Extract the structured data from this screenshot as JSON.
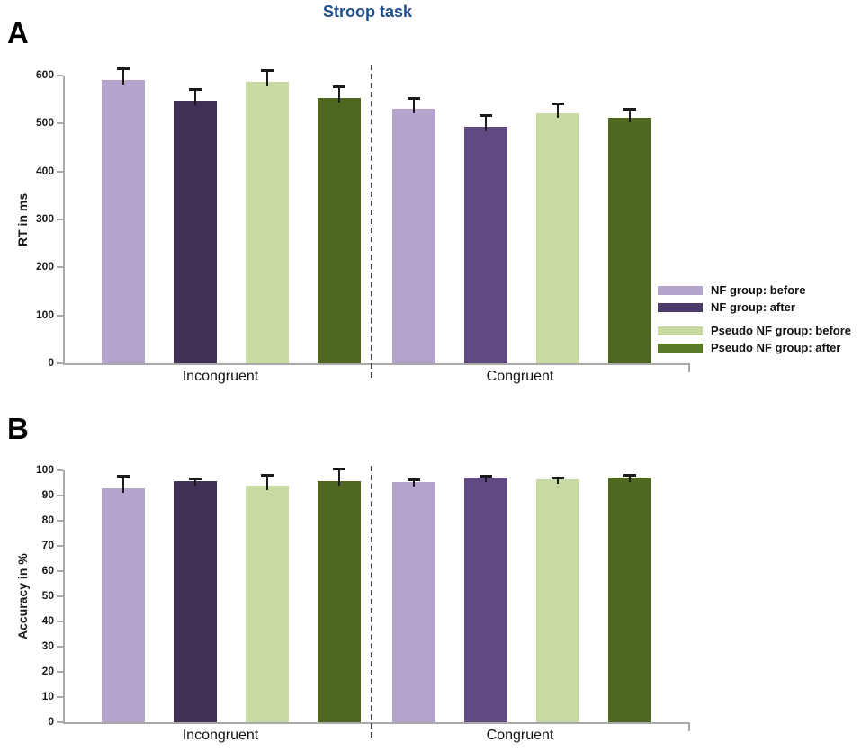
{
  "title": "Stroop task",
  "title_color": "#1f4e8c",
  "panels": {
    "a": "A",
    "b": "B"
  },
  "legend": {
    "items": [
      {
        "label": "NF group: before",
        "color": "#b3a3cd"
      },
      {
        "label": "NF group: after",
        "color": "#4a3a69"
      },
      {
        "label": "Pseudo NF group: before",
        "color": "#c8d9a1"
      },
      {
        "label": "Pseudo NF group: after",
        "color": "#5b7a28"
      }
    ]
  },
  "colors": {
    "axis": "#a9a9a9",
    "error_bar": "#1a1a1a",
    "divider": "#3d3d3d"
  },
  "chart_data": [
    {
      "id": "panel_A",
      "type": "bar",
      "panel_label": "A",
      "ylabel": "RT in ms",
      "ylim": [
        0,
        600
      ],
      "yticks": [
        0,
        100,
        200,
        300,
        400,
        500,
        600
      ],
      "categories": [
        "Incongruent",
        "Congruent"
      ],
      "grid": false,
      "legend_position": "right",
      "series": [
        {
          "name": "NF group: before",
          "values": [
            590,
            531
          ],
          "errors": [
            24,
            21
          ],
          "colors": [
            "#b3a3cd",
            "#b3a3cd"
          ]
        },
        {
          "name": "NF group: after",
          "values": [
            548,
            493
          ],
          "errors": [
            22,
            22
          ],
          "colors": [
            "#3f3156",
            "#5f4b82"
          ]
        },
        {
          "name": "Pseudo NF group: before",
          "values": [
            586,
            522
          ],
          "errors": [
            23,
            18
          ],
          "colors": [
            "#c8d9a1",
            "#c8d9a1"
          ]
        },
        {
          "name": "Pseudo NF group: after",
          "values": [
            553,
            511
          ],
          "errors": [
            23,
            18
          ],
          "colors": [
            "#50671f",
            "#50671f"
          ]
        }
      ]
    },
    {
      "id": "panel_B",
      "type": "bar",
      "panel_label": "B",
      "ylabel": "Accuracy  in %",
      "ylim": [
        0,
        100
      ],
      "yticks": [
        0,
        10,
        20,
        30,
        40,
        50,
        60,
        70,
        80,
        90,
        100
      ],
      "categories": [
        "Incongruent",
        "Congruent"
      ],
      "grid": false,
      "legend_position": "none",
      "series": [
        {
          "name": "NF group: before",
          "values": [
            93.0,
            95.4
          ],
          "errors": [
            4.5,
            0.8
          ],
          "colors": [
            "#b3a3cd",
            "#b3a3cd"
          ]
        },
        {
          "name": "NF group: after",
          "values": [
            95.8,
            97.2
          ],
          "errors": [
            0.7,
            0.4
          ],
          "colors": [
            "#3f3156",
            "#5f4b82"
          ]
        },
        {
          "name": "Pseudo NF group: before",
          "values": [
            93.8,
            96.4
          ],
          "errors": [
            4.0,
            0.5
          ],
          "colors": [
            "#c8d9a1",
            "#c8d9a1"
          ]
        },
        {
          "name": "Pseudo NF group: after",
          "values": [
            95.7,
            97.2
          ],
          "errors": [
            4.8,
            0.5
          ],
          "colors": [
            "#50671f",
            "#50671f"
          ]
        }
      ]
    }
  ]
}
